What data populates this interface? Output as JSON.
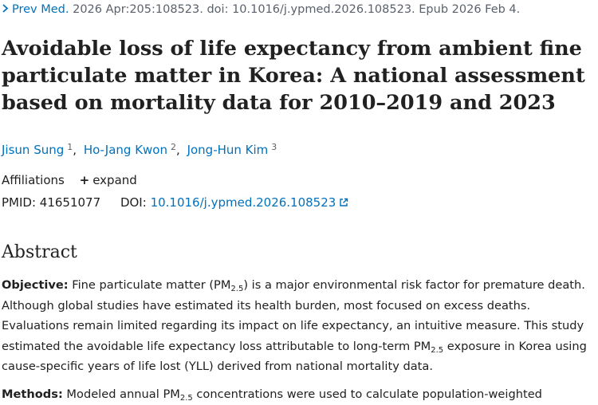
{
  "citation": {
    "journal": "Prev Med.",
    "details": "2026 Apr:205:108523. doi: 10.1016/j.ypmed.2026.108523. Epub 2026 Feb 4."
  },
  "title": "Avoidable loss of life expectancy from ambient fine particulate matter in Korea: A national assessment based on mortality data for 2010–2019 and 2023",
  "authors": [
    {
      "name": "Jisun Sung",
      "aff": "1"
    },
    {
      "name": "Ho-Jang Kwon",
      "aff": "2"
    },
    {
      "name": "Jong-Hun Kim",
      "aff": "3"
    }
  ],
  "affiliations": {
    "label": "Affiliations",
    "expand_label": "expand"
  },
  "identifiers": {
    "pmid_label": "PMID:",
    "pmid": "41651077",
    "doi_label": "DOI:",
    "doi": "10.1016/j.ypmed.2026.108523"
  },
  "abstract": {
    "heading": "Abstract",
    "objective": {
      "label": "Objective:",
      "text_1": "Fine particulate matter (PM",
      "sub_1": "2.5",
      "text_2": ") is a major environmental risk factor for premature death. Although global studies have estimated its health burden, most focused on excess deaths. Evaluations remain limited regarding its impact on life expectancy, an intuitive measure. This study estimated the avoidable life expectancy loss attributable to long-term PM",
      "sub_2": "2.5",
      "text_3": " exposure in Korea using cause-specific years of life lost (YLL) derived from national mortality data."
    },
    "methods": {
      "label": "Methods:",
      "text_1": "Modeled annual PM",
      "sub_1": "2.5",
      "text_2": " concentrations were used to calculate population-weighted"
    }
  },
  "colors": {
    "link": "#0071bc",
    "text": "#212121",
    "muted": "#5b616b"
  }
}
